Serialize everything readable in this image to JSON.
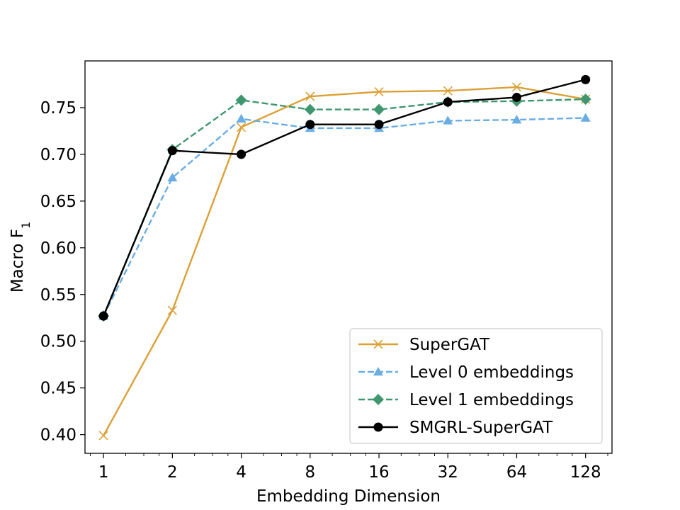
{
  "chart_data": {
    "type": "line",
    "title": "",
    "xlabel": "Embedding Dimension",
    "ylabel": "Macro F",
    "ylabel_subscript": "1",
    "x_scale": "log2",
    "x": [
      1,
      2,
      4,
      8,
      16,
      32,
      64,
      128
    ],
    "x_tick_labels": [
      "1",
      "2",
      "4",
      "8",
      "16",
      "32",
      "64",
      "128"
    ],
    "xlim": [
      0.83,
      167
    ],
    "ylim": [
      0.38,
      0.8
    ],
    "y_ticks": [
      0.4,
      0.45,
      0.5,
      0.55,
      0.6,
      0.65,
      0.7,
      0.75
    ],
    "y_tick_labels": [
      "0.40",
      "0.45",
      "0.50",
      "0.55",
      "0.60",
      "0.65",
      "0.70",
      "0.75"
    ],
    "legend_position": "lower-right",
    "series": [
      {
        "name": "SuperGAT",
        "color": "#dba035",
        "linestyle": "solid",
        "marker": "x",
        "values": [
          0.399,
          0.533,
          0.729,
          0.762,
          0.767,
          0.768,
          0.772,
          0.759
        ]
      },
      {
        "name": "Level 0 embeddings",
        "color": "#6aade4",
        "linestyle": "dashed",
        "marker": "triangle",
        "values": [
          0.527,
          0.675,
          0.738,
          0.728,
          0.728,
          0.736,
          0.737,
          0.739
        ]
      },
      {
        "name": "Level 1 embeddings",
        "color": "#3f9770",
        "linestyle": "dashed",
        "marker": "diamond",
        "values": [
          0.527,
          0.705,
          0.758,
          0.748,
          0.748,
          0.756,
          0.757,
          0.759
        ]
      },
      {
        "name": "SMGRL-SuperGAT",
        "color": "#000000",
        "linestyle": "solid",
        "marker": "circle",
        "values": [
          0.527,
          0.704,
          0.7,
          0.732,
          0.732,
          0.756,
          0.761,
          0.78
        ]
      }
    ]
  }
}
